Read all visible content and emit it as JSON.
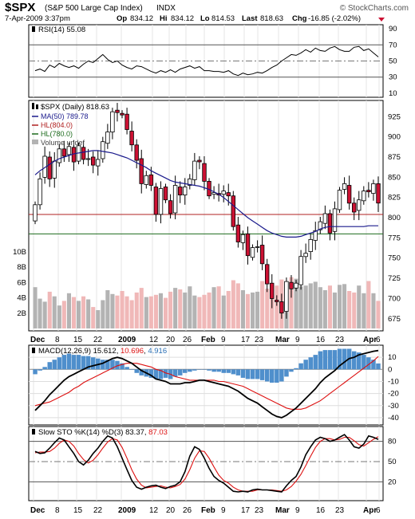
{
  "header": {
    "symbol": "$SPX",
    "name": "(S&P 500 Large Cap Index)",
    "exchange": "INDX",
    "site": "© StockCharts.com",
    "date": "7-Apr-2009 3:37pm",
    "op_label": "Op",
    "op": "834.12",
    "hi_label": "Hi",
    "hi": "834.12",
    "lo_label": "Lo",
    "lo": "814.53",
    "last_label": "Last",
    "last": "818.63",
    "chg_label": "Chg",
    "chg": "-16.85 (-2.02%)"
  },
  "colors": {
    "up_candle": "#ffffff",
    "down_candle": "#cc1133",
    "ma50": "#1a1a8c",
    "hline1": "#b02020",
    "hline2": "#1d6b1d",
    "vol_up": "#b3b3b3",
    "vol_down": "#f0b8b8",
    "macd_hist": "#4f8fcc",
    "signal": "#dd1111"
  },
  "x_labels": [
    "Dec",
    "8",
    "15",
    "22",
    "2009",
    "12",
    "20",
    "26",
    "Feb",
    "9",
    "17",
    "23",
    "Mar",
    "9",
    "16",
    "23",
    "Apr",
    "6"
  ],
  "rsi": {
    "legend": "RSI(14) 55.08",
    "ticks": [
      "90",
      "70",
      "50",
      "30",
      "10"
    ],
    "values": [
      38,
      40,
      37,
      45,
      42,
      47,
      44,
      42,
      44,
      41,
      46,
      50,
      48,
      53,
      58,
      52,
      48,
      50,
      45,
      42,
      40,
      44,
      43,
      40,
      37,
      35,
      38,
      36,
      39,
      36,
      40,
      42,
      44,
      41,
      43,
      38,
      38,
      37,
      37,
      36,
      38,
      34,
      32,
      35,
      33,
      34,
      36,
      35,
      38,
      42,
      45,
      50,
      54,
      58,
      57,
      60,
      64,
      61,
      66,
      63,
      62,
      66,
      68,
      64,
      62,
      62,
      67,
      68,
      63,
      65,
      60,
      55
    ]
  },
  "price": {
    "legend": "$SPX (Daily) 818.63",
    "ma_legend": "MA(50) 789.78",
    "hl1_legend": "HL(804.0)",
    "hl2_legend": "HL(780.0)",
    "vol_legend": "Volume undef",
    "ticks": [
      "925",
      "900",
      "875",
      "850",
      "825",
      "800",
      "775",
      "750",
      "725",
      "700",
      "675"
    ],
    "vol_ticks": [
      "10B",
      "8B",
      "6B",
      "4B",
      "2B"
    ],
    "hl1": 804,
    "hl2": 780,
    "closes": [
      816,
      848,
      876,
      848,
      870,
      885,
      876,
      888,
      869,
      889,
      872,
      873,
      865,
      872,
      894,
      906,
      931,
      930,
      927,
      909,
      890,
      871,
      842,
      852,
      840,
      804,
      836,
      822,
      805,
      840,
      828,
      838,
      848,
      870,
      869,
      845,
      827,
      831,
      828,
      833,
      827,
      789,
      770,
      779,
      753,
      763,
      764,
      743,
      718,
      700,
      696,
      682,
      721,
      712,
      719,
      752,
      756,
      773,
      784,
      795,
      805,
      781,
      811,
      834,
      842,
      818,
      807,
      822,
      833,
      832,
      842,
      818
    ],
    "ma": [
      853,
      858,
      862,
      866,
      870,
      873,
      875,
      877,
      879,
      880,
      881,
      882,
      883,
      883,
      882,
      881,
      880,
      878,
      876,
      874,
      871,
      868,
      865,
      862,
      858,
      855,
      852,
      849,
      846,
      844,
      843,
      842,
      841,
      840,
      839,
      837,
      835,
      832,
      829,
      825,
      820,
      815,
      810,
      805,
      800,
      796,
      792,
      788,
      784,
      781,
      779,
      777,
      776,
      776,
      776,
      777,
      779,
      781,
      783,
      786,
      788,
      789,
      789,
      789,
      789,
      789,
      789,
      789,
      789,
      790,
      790,
      790
    ],
    "volumes": [
      5.4,
      3.9,
      3.5,
      4.8,
      4.2,
      3.0,
      3.6,
      4.6,
      4.1,
      3.6,
      4.2,
      3.8,
      2.8,
      2.4,
      3.7,
      5.0,
      4.5,
      4.3,
      4.9,
      4.2,
      3.7,
      4.7,
      5.3,
      4.1,
      4.2,
      4.4,
      4.6,
      4.0,
      4.8,
      5.3,
      5.1,
      4.7,
      5.5,
      4.3,
      4.1,
      4.4,
      4.7,
      5.4,
      5.5,
      4.3,
      4.9,
      6.3,
      5.9,
      5.0,
      4.5,
      4.7,
      4.8,
      6.2,
      5.2,
      5.1,
      5.6,
      6.4,
      5.8,
      6.7,
      6.5,
      5.5,
      5.6,
      5.9,
      6.1,
      5.4,
      5.0,
      5.6,
      4.7,
      5.7,
      5.8,
      4.9,
      4.7,
      5.6,
      4.6,
      6.2,
      4.6,
      3.6
    ]
  },
  "macd": {
    "legend_label": "MACD(12,26,9)",
    "v1": "15.612",
    "v2": "10.696",
    "v3": "4.916",
    "ticks": [
      "10",
      "0",
      "-10",
      "-20",
      "-30",
      "-40"
    ],
    "macd": [
      -34,
      -30,
      -26,
      -21,
      -17,
      -13,
      -9,
      -6,
      -4,
      -2,
      0,
      2,
      3,
      4,
      5,
      7,
      9,
      10,
      9,
      7,
      5,
      2,
      -1,
      -3,
      -5,
      -8,
      -9,
      -10,
      -12,
      -12,
      -12,
      -11,
      -11,
      -10,
      -9,
      -9,
      -10,
      -11,
      -12,
      -13,
      -14,
      -16,
      -18,
      -21,
      -24,
      -26,
      -28,
      -31,
      -34,
      -37,
      -39,
      -40,
      -38,
      -35,
      -32,
      -28,
      -24,
      -20,
      -16,
      -11,
      -7,
      -4,
      -1,
      3,
      6,
      9,
      10,
      12,
      13,
      14,
      15,
      15.6
    ],
    "signal": [
      -30,
      -29,
      -28,
      -27,
      -25,
      -23,
      -21,
      -19,
      -16,
      -14,
      -11,
      -9,
      -7,
      -5,
      -3,
      -1,
      1,
      3,
      4,
      5,
      5,
      5,
      4,
      3,
      2,
      0,
      -1,
      -3,
      -4,
      -6,
      -7,
      -8,
      -9,
      -9,
      -9,
      -9,
      -9,
      -9,
      -10,
      -10,
      -11,
      -12,
      -13,
      -14,
      -16,
      -18,
      -20,
      -22,
      -24,
      -26,
      -28,
      -30,
      -32,
      -33,
      -33,
      -33,
      -32,
      -30,
      -28,
      -26,
      -23,
      -20,
      -17,
      -14,
      -11,
      -8,
      -5,
      -2,
      1,
      4,
      7,
      10.7
    ]
  },
  "sto": {
    "legend_label": "Slow STO %K(14) %D(3)",
    "k": "83.37",
    "d": "87.03",
    "ticks": [
      "80",
      "50",
      "20"
    ],
    "kvals": [
      65,
      62,
      63,
      70,
      78,
      85,
      82,
      72,
      62,
      50,
      45,
      52,
      62,
      70,
      80,
      88,
      85,
      72,
      55,
      38,
      22,
      12,
      9,
      12,
      14,
      15,
      12,
      10,
      13,
      15,
      20,
      35,
      58,
      72,
      68,
      55,
      40,
      28,
      22,
      18,
      12,
      6,
      5,
      6,
      5,
      8,
      9,
      8,
      8,
      7,
      6,
      5,
      14,
      22,
      28,
      42,
      60,
      72,
      82,
      86,
      84,
      80,
      82,
      86,
      90,
      82,
      72,
      70,
      76,
      88,
      86,
      83
    ],
    "dvals": [
      63,
      64,
      64,
      65,
      70,
      77,
      82,
      80,
      73,
      62,
      53,
      48,
      52,
      60,
      70,
      79,
      84,
      82,
      71,
      55,
      38,
      24,
      15,
      11,
      12,
      13,
      14,
      12,
      11,
      13,
      16,
      24,
      38,
      55,
      66,
      65,
      55,
      42,
      30,
      22,
      18,
      12,
      8,
      6,
      6,
      6,
      8,
      8,
      8,
      8,
      7,
      6,
      8,
      13,
      21,
      31,
      44,
      58,
      71,
      80,
      84,
      84,
      82,
      83,
      86,
      86,
      81,
      75,
      73,
      78,
      83,
      87
    ]
  }
}
